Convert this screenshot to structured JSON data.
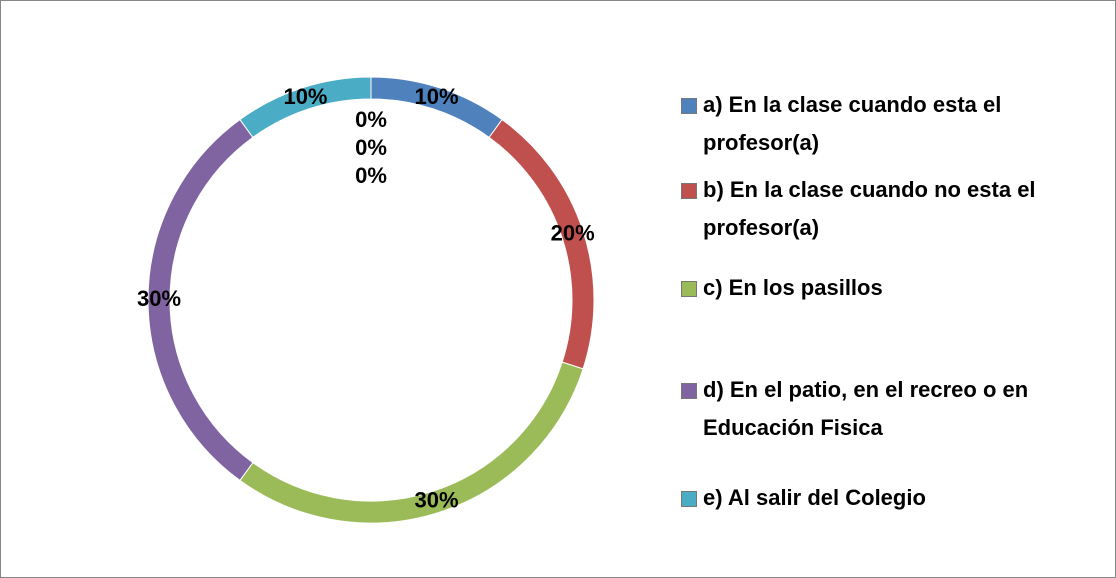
{
  "chart_data": {
    "type": "doughnut",
    "categories": [
      "a) En la clase cuando esta el profesor(a)",
      "b) En la clase cuando no esta el profesor(a)",
      "c) En los pasillos",
      "d) En el patio, en el recreo o en Educación Fisica",
      "e) Al salir del Colegio",
      null,
      null,
      null
    ],
    "values": [
      10,
      20,
      30,
      30,
      10,
      0,
      0,
      0
    ],
    "value_labels": [
      "10%",
      "20%",
      "30%",
      "30%",
      "10%",
      "0%",
      "0%",
      "0%"
    ],
    "colors": [
      "#4f81bd",
      "#c0504d",
      "#9bbb59",
      "#8064a2",
      "#4bacc6",
      null,
      null,
      null
    ],
    "legend": "right"
  }
}
